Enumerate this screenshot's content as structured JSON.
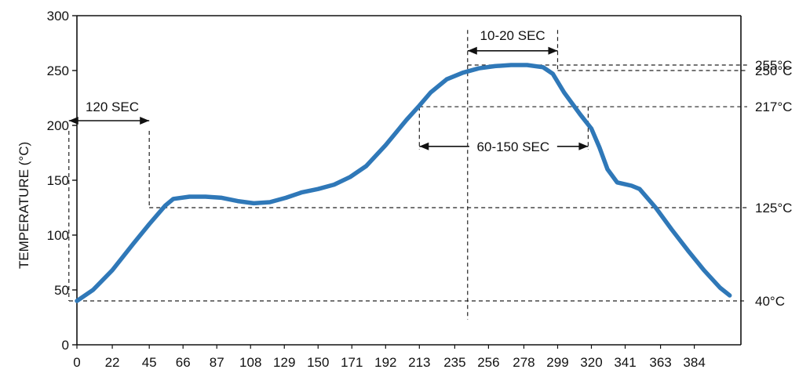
{
  "chart_data": {
    "type": "line",
    "title": "",
    "xlabel": "",
    "ylabel": "TEMPERATURE (°C)",
    "xlim": [
      0,
      413
    ],
    "ylim": [
      0,
      300
    ],
    "x_ticks": [
      "0",
      "22",
      "45",
      "66",
      "87",
      "108",
      "129",
      "150",
      "171",
      "192",
      "213",
      "235",
      "256",
      "278",
      "299",
      "320",
      "341",
      "363",
      "384"
    ],
    "y_ticks": [
      "0",
      "50",
      "100",
      "150",
      "200",
      "250",
      "300"
    ],
    "grid": false,
    "legend": "none",
    "series": [
      {
        "color": "#2f78b8",
        "points": [
          [
            0,
            40
          ],
          [
            10,
            50
          ],
          [
            22,
            68
          ],
          [
            35,
            92
          ],
          [
            45,
            110
          ],
          [
            55,
            127
          ],
          [
            60,
            133
          ],
          [
            70,
            135
          ],
          [
            80,
            135
          ],
          [
            90,
            134
          ],
          [
            100,
            131
          ],
          [
            110,
            129
          ],
          [
            120,
            130
          ],
          [
            130,
            134
          ],
          [
            140,
            139
          ],
          [
            150,
            142
          ],
          [
            160,
            146
          ],
          [
            170,
            153
          ],
          [
            180,
            163
          ],
          [
            192,
            182
          ],
          [
            205,
            205
          ],
          [
            213,
            218
          ],
          [
            220,
            230
          ],
          [
            230,
            242
          ],
          [
            240,
            248
          ],
          [
            250,
            252
          ],
          [
            260,
            254
          ],
          [
            270,
            255
          ],
          [
            280,
            255
          ],
          [
            290,
            253
          ],
          [
            296,
            247
          ],
          [
            303,
            230
          ],
          [
            313,
            210
          ],
          [
            320,
            197
          ],
          [
            325,
            180
          ],
          [
            330,
            160
          ],
          [
            336,
            148
          ],
          [
            345,
            145
          ],
          [
            350,
            142
          ],
          [
            360,
            125
          ],
          [
            370,
            105
          ],
          [
            380,
            86
          ],
          [
            390,
            68
          ],
          [
            400,
            52
          ],
          [
            406,
            45
          ]
        ]
      }
    ],
    "reference_lines": [
      {
        "value": 255,
        "label": "255°C"
      },
      {
        "value": 250,
        "label": "250°C"
      },
      {
        "value": 217,
        "label": "217°C"
      },
      {
        "value": 125,
        "label": "125°C"
      },
      {
        "value": 40,
        "label": "40°C"
      }
    ],
    "annotations": [
      {
        "label": "120 SEC",
        "x_start": -5,
        "x_end": 45,
        "y": 190
      },
      {
        "label": "10-20 SEC",
        "x_start": 243,
        "x_end": 299,
        "y": 268
      },
      {
        "label": "60-150 SEC",
        "x_start": 213,
        "x_end": 318,
        "y": 188
      }
    ]
  }
}
